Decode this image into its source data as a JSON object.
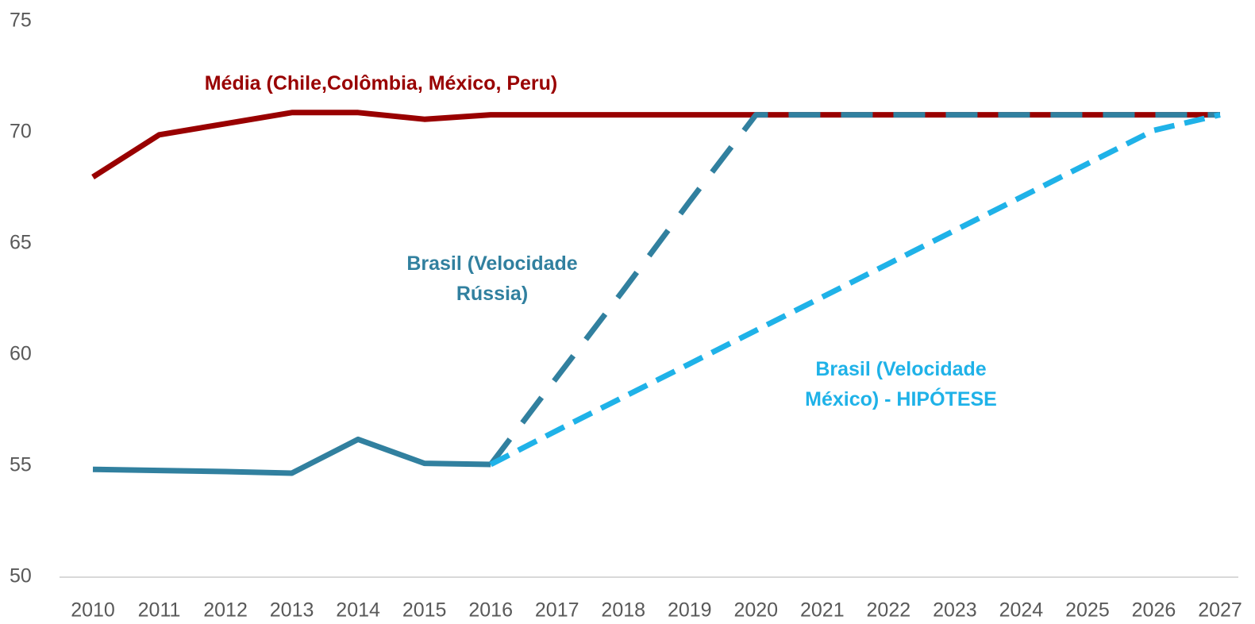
{
  "chart_data": {
    "type": "line",
    "categories": [
      "2010",
      "2011",
      "2012",
      "2013",
      "2014",
      "2015",
      "2016",
      "2017",
      "2018",
      "2019",
      "2020",
      "2021",
      "2022",
      "2023",
      "2024",
      "2025",
      "2026",
      "2027"
    ],
    "projection_from": "2016",
    "series": [
      {
        "name": "Média (Chile,Colômbia, México, Peru)",
        "color": "#990000",
        "dashed": false,
        "values": [
          68.0,
          69.9,
          70.4,
          70.9,
          70.9,
          70.6,
          70.8,
          70.8,
          70.8,
          70.8,
          70.8,
          70.8,
          70.8,
          70.8,
          70.8,
          70.8,
          70.8,
          70.8
        ]
      },
      {
        "name": "Brasil (Velocidade Rússia)",
        "color": "#31809f",
        "dashed": "projection",
        "values": [
          54.85,
          54.8,
          54.75,
          54.68,
          56.2,
          55.12,
          55.07,
          59.0,
          62.9,
          66.9,
          70.8,
          70.8,
          70.8,
          70.8,
          70.8,
          70.8,
          70.8,
          70.8
        ]
      },
      {
        "name": "Brasil (Velocidade México) - HIPÓTESE",
        "color": "#1fb2e8",
        "dashed": true,
        "values": [
          null,
          null,
          null,
          null,
          null,
          null,
          55.07,
          56.6,
          58.1,
          59.6,
          61.1,
          62.6,
          64.1,
          65.6,
          67.1,
          68.6,
          70.1,
          70.8
        ]
      }
    ],
    "ylim": [
      50,
      75
    ],
    "yticks": [
      50,
      55,
      60,
      65,
      70,
      75
    ],
    "grid": false
  }
}
